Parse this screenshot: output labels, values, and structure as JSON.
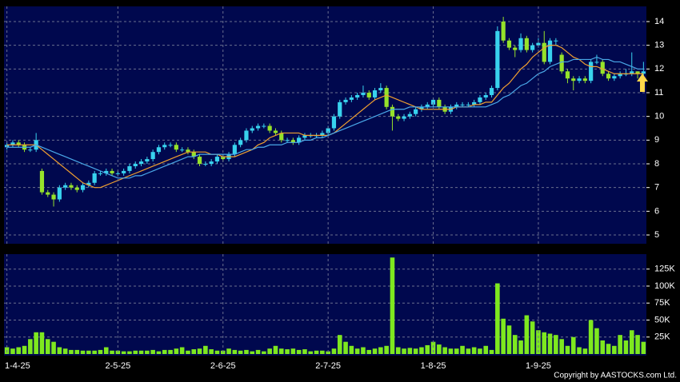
{
  "chart_data": [
    {
      "type": "candlestick",
      "open": [
        8.7,
        8.8,
        8.9,
        8.8,
        8.6,
        8.6,
        7.7,
        6.8,
        6.7,
        6.5,
        7.0,
        7.1,
        7.0,
        6.9,
        7.1,
        7.2,
        7.6,
        7.6,
        7.7,
        7.6,
        7.6,
        7.7,
        7.9,
        8.0,
        8.1,
        8.2,
        8.5,
        8.7,
        8.8,
        8.8,
        8.6,
        8.6,
        8.5,
        8.3,
        8.0,
        8.0,
        8.1,
        8.3,
        8.2,
        8.4,
        8.8,
        9.0,
        9.4,
        9.5,
        9.6,
        9.6,
        9.4,
        9.3,
        9.0,
        9.0,
        8.9,
        9.1,
        9.2,
        9.2,
        9.2,
        9.3,
        9.5,
        10.0,
        10.6,
        10.7,
        10.8,
        10.9,
        11.0,
        10.8,
        11.1,
        11.2,
        10.4,
        10.0,
        9.9,
        10.0,
        10.1,
        10.3,
        10.4,
        10.5,
        10.7,
        10.4,
        10.2,
        10.4,
        10.5,
        10.5,
        10.5,
        10.6,
        10.8,
        10.9,
        11.2,
        14.0,
        13.2,
        12.9,
        12.8,
        13.3,
        12.8,
        13.0,
        13.1,
        12.3,
        13.2,
        12.6,
        11.9,
        11.6,
        11.5,
        11.6,
        11.5,
        12.3,
        12.3,
        11.8,
        11.6,
        11.7,
        11.8,
        11.8,
        11.9,
        11.8
      ],
      "high": [
        8.9,
        9.0,
        9.0,
        8.9,
        8.7,
        9.3,
        7.8,
        6.9,
        6.8,
        7.1,
        7.2,
        7.2,
        7.1,
        7.2,
        7.3,
        7.7,
        7.7,
        7.8,
        7.8,
        7.7,
        7.8,
        8.0,
        8.1,
        8.2,
        8.3,
        8.6,
        8.8,
        8.9,
        8.9,
        8.9,
        8.7,
        8.7,
        8.6,
        8.4,
        8.1,
        8.2,
        8.4,
        8.4,
        8.5,
        8.9,
        9.1,
        9.5,
        9.6,
        9.7,
        9.7,
        9.7,
        9.5,
        9.4,
        9.1,
        9.1,
        9.2,
        9.3,
        9.3,
        9.3,
        9.4,
        9.6,
        10.1,
        10.7,
        10.8,
        10.9,
        11.0,
        11.3,
        11.1,
        11.2,
        11.4,
        11.3,
        10.5,
        10.1,
        10.1,
        10.2,
        10.4,
        10.5,
        10.6,
        10.8,
        10.8,
        10.5,
        10.5,
        10.6,
        10.6,
        10.6,
        10.7,
        10.9,
        11.0,
        11.3,
        13.8,
        14.2,
        13.3,
        13.0,
        13.5,
        13.4,
        13.1,
        13.3,
        13.6,
        13.3,
        13.3,
        12.7,
        12.0,
        11.7,
        11.7,
        11.7,
        12.4,
        12.6,
        12.4,
        11.9,
        11.8,
        11.9,
        12.0,
        12.7,
        11.9,
        12.3
      ],
      "low": [
        8.6,
        8.7,
        8.7,
        8.5,
        8.5,
        8.5,
        6.7,
        6.6,
        6.2,
        6.4,
        6.9,
        6.9,
        6.8,
        6.8,
        7.0,
        7.1,
        7.5,
        7.5,
        7.5,
        7.5,
        7.5,
        7.6,
        7.8,
        7.9,
        8.0,
        8.1,
        8.4,
        8.6,
        8.7,
        8.5,
        8.5,
        8.4,
        8.2,
        7.9,
        7.9,
        7.9,
        8.0,
        8.1,
        8.1,
        8.3,
        8.7,
        8.9,
        9.3,
        9.4,
        9.5,
        9.3,
        9.2,
        8.9,
        8.9,
        8.8,
        8.8,
        9.0,
        9.1,
        9.1,
        9.1,
        9.2,
        9.4,
        9.9,
        10.5,
        10.6,
        10.7,
        10.8,
        10.7,
        10.7,
        11.0,
        10.3,
        9.4,
        9.8,
        9.8,
        9.9,
        10.0,
        10.2,
        10.3,
        10.4,
        10.3,
        10.1,
        10.1,
        10.3,
        10.4,
        10.4,
        10.4,
        10.5,
        10.7,
        10.8,
        11.1,
        13.1,
        12.8,
        12.5,
        12.7,
        12.7,
        12.7,
        12.9,
        12.2,
        12.2,
        13.0,
        11.8,
        11.4,
        11.1,
        11.4,
        11.4,
        11.4,
        12.2,
        11.7,
        11.5,
        11.5,
        11.6,
        11.7,
        11.7,
        11.6,
        11.7
      ],
      "close": [
        8.8,
        8.9,
        8.8,
        8.6,
        8.6,
        9.0,
        6.8,
        6.7,
        6.5,
        7.0,
        7.1,
        7.0,
        6.9,
        7.1,
        7.2,
        7.6,
        7.6,
        7.7,
        7.6,
        7.6,
        7.7,
        7.9,
        8.0,
        8.1,
        8.2,
        8.5,
        8.7,
        8.8,
        8.8,
        8.6,
        8.6,
        8.5,
        8.3,
        8.0,
        8.0,
        8.1,
        8.3,
        8.2,
        8.4,
        8.8,
        9.0,
        9.4,
        9.5,
        9.6,
        9.6,
        9.4,
        9.3,
        9.0,
        9.0,
        8.9,
        9.1,
        9.2,
        9.2,
        9.2,
        9.3,
        9.5,
        10.0,
        10.6,
        10.7,
        10.8,
        10.9,
        11.0,
        10.8,
        11.1,
        11.2,
        10.4,
        10.0,
        9.9,
        10.0,
        10.1,
        10.3,
        10.4,
        10.5,
        10.7,
        10.4,
        10.2,
        10.4,
        10.5,
        10.5,
        10.5,
        10.6,
        10.8,
        10.9,
        11.2,
        13.6,
        13.2,
        12.9,
        12.8,
        13.3,
        12.8,
        13.0,
        13.1,
        12.3,
        13.2,
        13.2,
        11.9,
        11.6,
        11.5,
        11.6,
        11.5,
        12.3,
        12.3,
        11.8,
        11.6,
        11.7,
        11.8,
        11.8,
        11.9,
        11.8,
        11.9
      ],
      "up_color": "#38d2ee",
      "down_color": "#96e22a",
      "series": [
        {
          "color": "#f0a030",
          "values": [
            8.8,
            8.8,
            8.8,
            8.8,
            8.8,
            8.8,
            8.6,
            8.4,
            8.2,
            8.0,
            7.8,
            7.6,
            7.4,
            7.2,
            7.1,
            7.0,
            7.0,
            7.1,
            7.2,
            7.3,
            7.4,
            7.5,
            7.6,
            7.7,
            7.8,
            7.9,
            8.0,
            8.1,
            8.2,
            8.3,
            8.4,
            8.5,
            8.5,
            8.5,
            8.5,
            8.4,
            8.4,
            8.3,
            8.3,
            8.3,
            8.4,
            8.5,
            8.6,
            8.8,
            8.9,
            9.1,
            9.2,
            9.3,
            9.3,
            9.3,
            9.3,
            9.2,
            9.2,
            9.2,
            9.2,
            9.2,
            9.3,
            9.5,
            9.7,
            9.9,
            10.1,
            10.3,
            10.5,
            10.7,
            10.8,
            10.9,
            10.8,
            10.7,
            10.6,
            10.5,
            10.4,
            10.3,
            10.3,
            10.3,
            10.3,
            10.3,
            10.3,
            10.4,
            10.4,
            10.4,
            10.5,
            10.5,
            10.6,
            10.6,
            10.9,
            11.2,
            11.4,
            11.7,
            12.0,
            12.2,
            12.5,
            12.7,
            12.9,
            13.0,
            13.0,
            12.9,
            12.7,
            12.5,
            12.4,
            12.2,
            12.1,
            12.1,
            12.0,
            11.9,
            11.8,
            11.8,
            11.8,
            11.8,
            11.8,
            11.8
          ]
        },
        {
          "color": "#4aa8e8",
          "values": [
            8.7,
            8.7,
            8.7,
            8.7,
            8.7,
            8.8,
            8.7,
            8.6,
            8.5,
            8.4,
            8.3,
            8.2,
            8.1,
            8.0,
            7.9,
            7.8,
            7.7,
            7.6,
            7.5,
            7.4,
            7.4,
            7.4,
            7.5,
            7.5,
            7.6,
            7.7,
            7.8,
            7.9,
            8.0,
            8.1,
            8.2,
            8.3,
            8.3,
            8.4,
            8.4,
            8.4,
            8.4,
            8.4,
            8.4,
            8.4,
            8.5,
            8.6,
            8.6,
            8.7,
            8.7,
            8.8,
            8.8,
            8.8,
            8.9,
            8.9,
            8.9,
            9.0,
            9.0,
            9.1,
            9.1,
            9.2,
            9.3,
            9.4,
            9.5,
            9.6,
            9.7,
            9.8,
            9.9,
            10.0,
            10.1,
            10.2,
            10.3,
            10.3,
            10.3,
            10.4,
            10.4,
            10.4,
            10.4,
            10.4,
            10.4,
            10.4,
            10.4,
            10.4,
            10.4,
            10.4,
            10.4,
            10.4,
            10.4,
            10.5,
            10.6,
            10.8,
            10.9,
            11.1,
            11.3,
            11.4,
            11.6,
            11.8,
            11.9,
            12.1,
            12.2,
            12.3,
            12.3,
            12.4,
            12.4,
            12.4,
            12.4,
            12.5,
            12.4,
            12.4,
            12.3,
            12.3,
            12.2,
            12.1,
            12.0,
            12.0
          ]
        }
      ],
      "ylim": [
        4.63,
        14.64
      ],
      "yticks": [
        5,
        6,
        7,
        8,
        9,
        10,
        11,
        12,
        13,
        14
      ],
      "grid": true
    },
    {
      "type": "bar",
      "categories": [
        "1-4-25",
        null,
        null,
        null,
        null,
        null,
        null,
        null,
        null,
        null,
        null,
        null,
        null,
        null,
        null,
        null,
        null,
        null,
        null,
        "2-5-25",
        null,
        null,
        null,
        null,
        null,
        null,
        null,
        null,
        null,
        null,
        null,
        null,
        null,
        null,
        null,
        null,
        null,
        "2-6-25",
        null,
        null,
        null,
        null,
        null,
        null,
        null,
        null,
        null,
        null,
        null,
        null,
        null,
        null,
        null,
        null,
        null,
        "2-7-25",
        null,
        null,
        null,
        null,
        null,
        null,
        null,
        null,
        null,
        null,
        null,
        null,
        null,
        null,
        null,
        null,
        null,
        "1-8-25",
        null,
        null,
        null,
        null,
        null,
        null,
        null,
        null,
        null,
        null,
        null,
        null,
        null,
        null,
        null,
        null,
        null,
        "1-9-25",
        null,
        null,
        null,
        null,
        null,
        null,
        null,
        null,
        null,
        null,
        null,
        null,
        null,
        null,
        null,
        null,
        null,
        null
      ],
      "values": [
        10000,
        8000,
        10000,
        12000,
        22000,
        32000,
        32000,
        22000,
        18000,
        10000,
        8000,
        6000,
        6000,
        5000,
        5000,
        5000,
        6000,
        10000,
        5000,
        5000,
        4000,
        4000,
        5000,
        5000,
        5000,
        6000,
        4000,
        6000,
        6000,
        8000,
        10000,
        5000,
        7000,
        8000,
        12000,
        7000,
        5000,
        5000,
        8000,
        6000,
        5000,
        6000,
        4000,
        6000,
        4000,
        8000,
        12000,
        8000,
        7000,
        8000,
        6000,
        7000,
        4000,
        5000,
        5000,
        4000,
        8000,
        28000,
        18000,
        12000,
        8000,
        10000,
        6000,
        8000,
        10000,
        12000,
        142000,
        10000,
        8000,
        9000,
        8000,
        10000,
        13000,
        18000,
        14000,
        10000,
        8000,
        8000,
        12000,
        8000,
        10000,
        8000,
        12000,
        6000,
        104000,
        52000,
        42000,
        28000,
        20000,
        57000,
        48000,
        35000,
        32000,
        30000,
        28000,
        22000,
        12000,
        25000,
        10000,
        8000,
        50000,
        38000,
        20000,
        15000,
        12000,
        28000,
        20000,
        35000,
        28000,
        18000
      ],
      "color": "#7ee81f",
      "ylim": [
        0,
        147000
      ],
      "yticks": [
        {
          "value": 25000,
          "label": "25K"
        },
        {
          "value": 50000,
          "label": "50K"
        },
        {
          "value": 75000,
          "label": "75K"
        },
        {
          "value": 100000,
          "label": "100K"
        },
        {
          "value": 125000,
          "label": "125K"
        }
      ],
      "grid": true
    }
  ],
  "copyright": "Copyright by AASTOCKS.com Ltd."
}
